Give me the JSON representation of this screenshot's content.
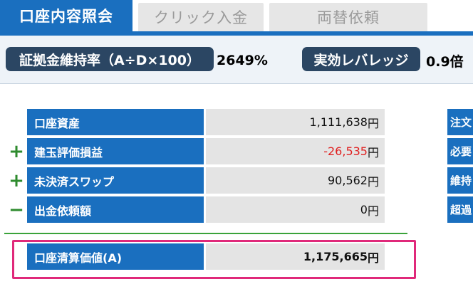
{
  "tabs": [
    {
      "label": "口座内容照会",
      "active": true
    },
    {
      "label": "クリック入金",
      "active": false
    },
    {
      "label": "両替依頼",
      "active": false
    }
  ],
  "ratio_band": {
    "margin_ratio_label": "証拠金維持率（A÷D×100）",
    "margin_ratio_value": "2649%",
    "leverage_label": "実効レバレッジ",
    "leverage_value": "0.9倍"
  },
  "account_table": {
    "rows": [
      {
        "sign": "",
        "label": "口座資産",
        "value": "1,111,638",
        "unit": "円",
        "negative": false
      },
      {
        "sign": "+",
        "label": "建玉評価損益",
        "value": "-26,535",
        "unit": "円",
        "negative": true
      },
      {
        "sign": "+",
        "label": "未決済スワップ",
        "value": "90,562",
        "unit": "円",
        "negative": false
      },
      {
        "sign": "−",
        "label": "出金依頼額",
        "value": "0",
        "unit": "円",
        "negative": false
      }
    ],
    "total": {
      "label": "口座清算価値(A)",
      "value": "1,175,665",
      "unit": "円"
    }
  },
  "right_table": {
    "labels": [
      "注文",
      "必要",
      "維持",
      "超過"
    ]
  },
  "colors": {
    "tab_blue": "#1a6fbf",
    "pill_navy": "#2b4663",
    "negative_red": "#e02020",
    "plus_green": "#2e8b2e",
    "highlight_pink": "#e0297a"
  }
}
